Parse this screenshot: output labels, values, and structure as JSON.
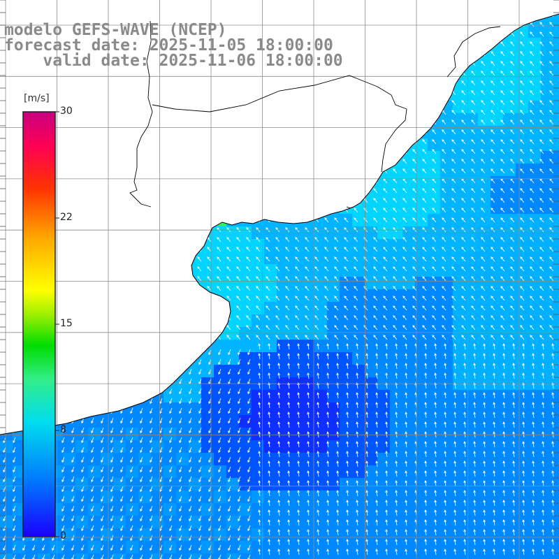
{
  "title": {
    "model": "modelo GEFS-WAVE (NCEP)",
    "forecast": "forecast date: 2025-11-05 18:00:00",
    "valid": "valid date: 2025-11-06 18:00:00"
  },
  "colorbar": {
    "unit": "[m/s]",
    "ticks": [
      "30",
      "22",
      "15",
      "8",
      "0"
    ],
    "tick_values": [
      30,
      22,
      15,
      8,
      0
    ],
    "min": 0,
    "max": 30
  },
  "colors": {
    "land": "#ffffff",
    "grid": "#8c8c8c",
    "coast": "#000000",
    "arrow": "#ffffff",
    "scale": [
      "#1a00ff",
      "#0055ff",
      "#0099ff",
      "#00c8ff",
      "#00eeee",
      "#33ee88",
      "#00dd00",
      "#88ee00",
      "#ffff00",
      "#ffaa00",
      "#ff5500",
      "#ff0000",
      "#ff0077",
      "#cc0088"
    ]
  },
  "legend_placement": "left"
}
